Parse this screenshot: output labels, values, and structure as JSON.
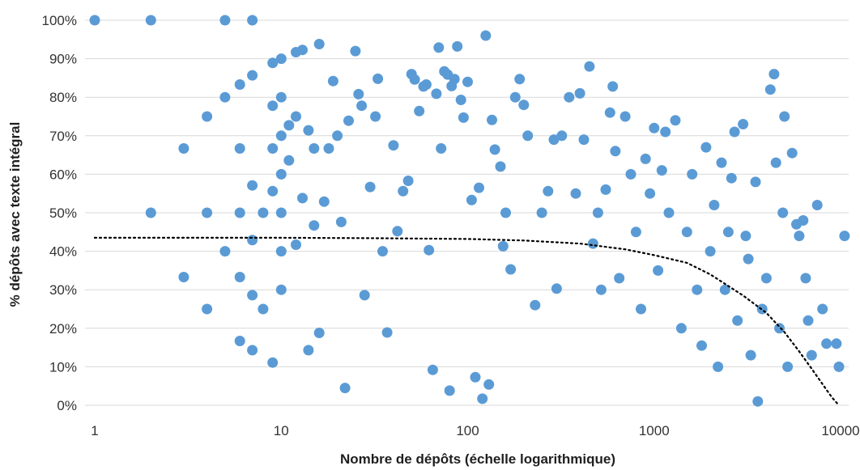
{
  "chart_data": {
    "type": "scatter",
    "title": "",
    "xlabel": "Nombre de dépôts (échelle logarithmique)",
    "ylabel": "% dépôts avec texte intégral",
    "x_scale": "log",
    "xlim": [
      1,
      10000
    ],
    "ylim": [
      0,
      1
    ],
    "x_ticks": [
      1,
      10,
      100,
      1000,
      10000
    ],
    "x_tick_labels": [
      "1",
      "10",
      "100",
      "1000",
      "10000"
    ],
    "y_ticks": [
      0,
      0.1,
      0.2,
      0.3,
      0.4,
      0.5,
      0.6,
      0.7,
      0.8,
      0.9,
      1.0
    ],
    "y_tick_labels": [
      "0%",
      "10%",
      "20%",
      "30%",
      "40%",
      "50%",
      "60%",
      "70%",
      "80%",
      "90%",
      "100%"
    ],
    "grid": "horizontal",
    "legend": "none",
    "colors": {
      "points": "#5b9bd5",
      "trendline": "#000000",
      "grid": "#d9d9d9"
    },
    "series": [
      {
        "values": [
          [
            1,
            1.0
          ],
          [
            2,
            1.0
          ],
          [
            5,
            1.0
          ],
          [
            7,
            1.0
          ],
          [
            2,
            0.5
          ],
          [
            3,
            0.667
          ],
          [
            3,
            0.333
          ],
          [
            4,
            0.75
          ],
          [
            4,
            0.5
          ],
          [
            4,
            0.25
          ],
          [
            5,
            0.8
          ],
          [
            5,
            0.4
          ],
          [
            6,
            0.833
          ],
          [
            6,
            0.667
          ],
          [
            6,
            0.5
          ],
          [
            6,
            0.333
          ],
          [
            6,
            0.167
          ],
          [
            7,
            0.857
          ],
          [
            7,
            0.571
          ],
          [
            7,
            0.429
          ],
          [
            7,
            0.286
          ],
          [
            7,
            0.143
          ],
          [
            8,
            0.5
          ],
          [
            8,
            0.25
          ],
          [
            9,
            0.889
          ],
          [
            9,
            0.778
          ],
          [
            9,
            0.667
          ],
          [
            9,
            0.556
          ],
          [
            9,
            0.111
          ],
          [
            10,
            0.9
          ],
          [
            10,
            0.8
          ],
          [
            10,
            0.7
          ],
          [
            10,
            0.6
          ],
          [
            10,
            0.5
          ],
          [
            10,
            0.4
          ],
          [
            10,
            0.3
          ],
          [
            11,
            0.636
          ],
          [
            11,
            0.727
          ],
          [
            12,
            0.75
          ],
          [
            12,
            0.917
          ],
          [
            12,
            0.417
          ],
          [
            13,
            0.538
          ],
          [
            13,
            0.923
          ],
          [
            14,
            0.714
          ],
          [
            14,
            0.143
          ],
          [
            15,
            0.667
          ],
          [
            15,
            0.467
          ],
          [
            16,
            0.938
          ],
          [
            16,
            0.188
          ],
          [
            17,
            0.529
          ],
          [
            18,
            0.667
          ],
          [
            19,
            0.842
          ],
          [
            20,
            0.7
          ],
          [
            21,
            0.476
          ],
          [
            22,
            0.045
          ],
          [
            23,
            0.739
          ],
          [
            25,
            0.92
          ],
          [
            26,
            0.808
          ],
          [
            27,
            0.778
          ],
          [
            28,
            0.286
          ],
          [
            30,
            0.567
          ],
          [
            32,
            0.75
          ],
          [
            33,
            0.848
          ],
          [
            35,
            0.4
          ],
          [
            37,
            0.189
          ],
          [
            40,
            0.675
          ],
          [
            42,
            0.452
          ],
          [
            45,
            0.556
          ],
          [
            48,
            0.583
          ],
          [
            50,
            0.86
          ],
          [
            52,
            0.846
          ],
          [
            55,
            0.764
          ],
          [
            58,
            0.828
          ],
          [
            60,
            0.833
          ],
          [
            62,
            0.403
          ],
          [
            65,
            0.092
          ],
          [
            68,
            0.809
          ],
          [
            70,
            0.929
          ],
          [
            72,
            0.667
          ],
          [
            75,
            0.867
          ],
          [
            78,
            0.859
          ],
          [
            80,
            0.038
          ],
          [
            82,
            0.829
          ],
          [
            85,
            0.847
          ],
          [
            88,
            0.932
          ],
          [
            92,
            0.793
          ],
          [
            95,
            0.747
          ],
          [
            100,
            0.84
          ],
          [
            105,
            0.533
          ],
          [
            110,
            0.073
          ],
          [
            115,
            0.565
          ],
          [
            120,
            0.017
          ],
          [
            125,
            0.96
          ],
          [
            130,
            0.054
          ],
          [
            135,
            0.741
          ],
          [
            140,
            0.664
          ],
          [
            150,
            0.62
          ],
          [
            155,
            0.413
          ],
          [
            160,
            0.5
          ],
          [
            170,
            0.353
          ],
          [
            180,
            0.8
          ],
          [
            190,
            0.847
          ],
          [
            200,
            0.78
          ],
          [
            210,
            0.7
          ],
          [
            230,
            0.26
          ],
          [
            250,
            0.5
          ],
          [
            270,
            0.556
          ],
          [
            290,
            0.69
          ],
          [
            300,
            0.303
          ],
          [
            320,
            0.7
          ],
          [
            350,
            0.8
          ],
          [
            380,
            0.55
          ],
          [
            400,
            0.81
          ],
          [
            420,
            0.69
          ],
          [
            450,
            0.88
          ],
          [
            470,
            0.42
          ],
          [
            500,
            0.5
          ],
          [
            520,
            0.3
          ],
          [
            550,
            0.56
          ],
          [
            580,
            0.76
          ],
          [
            600,
            0.828
          ],
          [
            620,
            0.66
          ],
          [
            650,
            0.33
          ],
          [
            700,
            0.75
          ],
          [
            750,
            0.6
          ],
          [
            800,
            0.45
          ],
          [
            850,
            0.25
          ],
          [
            900,
            0.64
          ],
          [
            950,
            0.55
          ],
          [
            1000,
            0.72
          ],
          [
            1050,
            0.35
          ],
          [
            1100,
            0.61
          ],
          [
            1150,
            0.71
          ],
          [
            1200,
            0.5
          ],
          [
            1300,
            0.74
          ],
          [
            1400,
            0.2
          ],
          [
            1500,
            0.45
          ],
          [
            1600,
            0.6
          ],
          [
            1700,
            0.3
          ],
          [
            1800,
            0.155
          ],
          [
            1900,
            0.67
          ],
          [
            2000,
            0.4
          ],
          [
            2100,
            0.52
          ],
          [
            2200,
            0.1
          ],
          [
            2300,
            0.63
          ],
          [
            2400,
            0.3
          ],
          [
            2500,
            0.45
          ],
          [
            2600,
            0.59
          ],
          [
            2700,
            0.71
          ],
          [
            2800,
            0.22
          ],
          [
            3000,
            0.73
          ],
          [
            3100,
            0.44
          ],
          [
            3200,
            0.38
          ],
          [
            3300,
            0.13
          ],
          [
            3500,
            0.58
          ],
          [
            3600,
            0.01
          ],
          [
            3800,
            0.25
          ],
          [
            4000,
            0.33
          ],
          [
            4200,
            0.82
          ],
          [
            4400,
            0.86
          ],
          [
            4500,
            0.63
          ],
          [
            4700,
            0.2
          ],
          [
            4900,
            0.5
          ],
          [
            5000,
            0.75
          ],
          [
            5200,
            0.1
          ],
          [
            5500,
            0.655
          ],
          [
            5800,
            0.47
          ],
          [
            6000,
            0.44
          ],
          [
            6300,
            0.48
          ],
          [
            6500,
            0.33
          ],
          [
            6700,
            0.22
          ],
          [
            7000,
            0.13
          ],
          [
            7500,
            0.52
          ],
          [
            8000,
            0.25
          ],
          [
            8400,
            0.16
          ],
          [
            9500,
            0.16
          ],
          [
            9800,
            0.1
          ],
          [
            10500,
            0.44
          ]
        ]
      }
    ],
    "trendline": {
      "style": "dotted",
      "points": [
        [
          1,
          0.435
        ],
        [
          10,
          0.435
        ],
        [
          30,
          0.434
        ],
        [
          100,
          0.432
        ],
        [
          200,
          0.428
        ],
        [
          400,
          0.42
        ],
        [
          700,
          0.405
        ],
        [
          1000,
          0.39
        ],
        [
          1500,
          0.37
        ],
        [
          2000,
          0.34
        ],
        [
          3000,
          0.285
        ],
        [
          4000,
          0.24
        ],
        [
          5000,
          0.19
        ],
        [
          6000,
          0.14
        ],
        [
          7000,
          0.095
        ],
        [
          8000,
          0.055
        ],
        [
          9000,
          0.02
        ],
        [
          9800,
          0.0
        ]
      ]
    }
  }
}
